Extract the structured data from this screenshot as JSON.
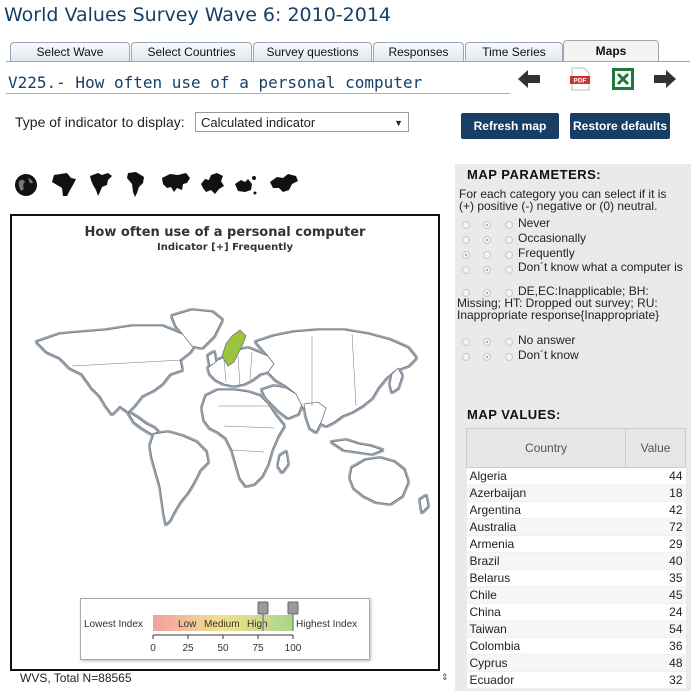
{
  "app": {
    "title": "World Values Survey Wave 6: 2010-2014"
  },
  "tabs": [
    {
      "label": "Select Wave"
    },
    {
      "label": "Select Countries"
    },
    {
      "label": "Survey questions"
    },
    {
      "label": "Responses"
    },
    {
      "label": "Time Series"
    },
    {
      "label": "Maps",
      "active": true
    }
  ],
  "variable_title": "V225.- How often use of a personal computer",
  "nav": {
    "back_icon": "arrow-left-icon",
    "pdf_icon": "pdf-icon",
    "pdf_label": "PDF",
    "excel_icon": "excel-icon",
    "forward_icon": "arrow-right-icon"
  },
  "indicator": {
    "label": "Type of indicator to display:",
    "selected": "Calculated indicator"
  },
  "buttons": {
    "refresh": "Refresh map",
    "restore": "Restore defaults"
  },
  "regions": [
    "globe-icon",
    "africa-icon",
    "north-america-icon",
    "south-america-icon",
    "asia-icon",
    "europe-icon",
    "oceania-icon",
    "middle-east-icon"
  ],
  "map": {
    "title": "How often use of a personal computer",
    "subtitle": "Indicator [+] Frequently",
    "legend": {
      "lowest": "Lowest Index",
      "highest": "Highest Index",
      "low": "Low",
      "medium": "Medium",
      "high": "High",
      "ticks": [
        "0",
        "25",
        "50",
        "75",
        "100"
      ]
    }
  },
  "footer": "WVS, Total N=88565",
  "params": {
    "title": "MAP PARAMETERS:",
    "desc1": "For each category you can select if it is",
    "desc2": "(+) positive (-) negative or (0) neutral.",
    "categories": [
      {
        "label": "Never",
        "selected": "-"
      },
      {
        "label": "Occasionally",
        "selected": "-"
      },
      {
        "label": "Frequently",
        "selected": "+"
      },
      {
        "label": "Don´t know what a computer is",
        "selected": "-"
      },
      {
        "label": "DE,EC:Inapplicable; BH: Missing; HT: Dropped out survey; RU: Inappropriate response{Inappropriate}",
        "selected": "-"
      },
      {
        "label": "No answer",
        "selected": "-"
      },
      {
        "label": "Don´t know",
        "selected": "-"
      }
    ]
  },
  "values": {
    "title": "MAP VALUES:",
    "headers": [
      "Country",
      "Value"
    ],
    "rows": [
      [
        "Algeria",
        "44"
      ],
      [
        "Azerbaijan",
        "18"
      ],
      [
        "Argentina",
        "42"
      ],
      [
        "Australia",
        "72"
      ],
      [
        "Armenia",
        "29"
      ],
      [
        "Brazil",
        "40"
      ],
      [
        "Belarus",
        "35"
      ],
      [
        "Chile",
        "45"
      ],
      [
        "China",
        "24"
      ],
      [
        "Taiwan",
        "54"
      ],
      [
        "Colombia",
        "36"
      ],
      [
        "Cyprus",
        "48"
      ],
      [
        "Ecuador",
        "32"
      ]
    ]
  },
  "colors": {
    "brand": "#173f66",
    "highlight": "#9bc53d",
    "legend_low": "#f2a0a0",
    "legend_mid": "#f3e28a",
    "legend_high": "#a9d58a"
  }
}
